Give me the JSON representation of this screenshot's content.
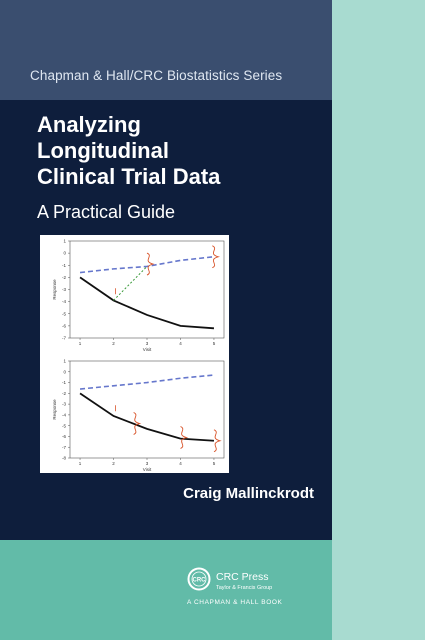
{
  "series_name": "Chapman & Hall/CRC Biostatistics Series",
  "title_lines": [
    "Analyzing",
    "Longitudinal",
    "Clinical Trial Data"
  ],
  "subtitle": "A Practical Guide",
  "author": "Craig Mallinckrodt",
  "publisher": {
    "logo_text": "CRC",
    "name": "CRC Press",
    "group": "Taylor & Francis Group",
    "imprint": "A CHAPMAN & HALL BOOK"
  },
  "colors": {
    "top_band": "#3a4e6f",
    "main_band": "#0e1e3c",
    "bottom_band": "#62bba8",
    "spine_strip": "#a8dbd0",
    "drop_line": "#3a9a3a",
    "density_curve": "#d8542a",
    "reference_line": "#6677cc"
  },
  "chart_data": [
    {
      "type": "line",
      "xlabel": "Visit",
      "ylabel": "Response",
      "x": [
        1,
        2,
        3,
        4,
        5
      ],
      "xticks": [
        "1",
        "2",
        "3",
        "4",
        "5"
      ],
      "yticks": [
        "1",
        "0",
        "-1",
        "-2",
        "-3",
        "-4",
        "-5",
        "-6",
        "-7"
      ],
      "ylim": [
        -7,
        1
      ],
      "series": [
        {
          "values": [
            -1.6,
            -1.3,
            -1.1,
            -0.6,
            -0.3
          ]
        },
        {
          "values": [
            -2.0,
            -3.9,
            -5.1,
            -6.0,
            -6.2
          ]
        },
        {
          "values": [
            null,
            -3.9,
            -1.1,
            null,
            null
          ]
        }
      ]
    },
    {
      "type": "line",
      "xlabel": "Visit",
      "ylabel": "Response",
      "x": [
        1,
        2,
        3,
        4,
        5
      ],
      "xticks": [
        "1",
        "2",
        "3",
        "4",
        "5"
      ],
      "yticks": [
        "1",
        "0",
        "-1",
        "-2",
        "-3",
        "-4",
        "-5",
        "-6",
        "-7",
        "-8"
      ],
      "ylim": [
        -8,
        1
      ],
      "series": [
        {
          "values": [
            -1.6,
            -1.3,
            -1.0,
            -0.6,
            -0.3
          ]
        },
        {
          "values": [
            -2.0,
            -4.1,
            -5.3,
            -6.2,
            -6.4
          ]
        }
      ]
    }
  ]
}
